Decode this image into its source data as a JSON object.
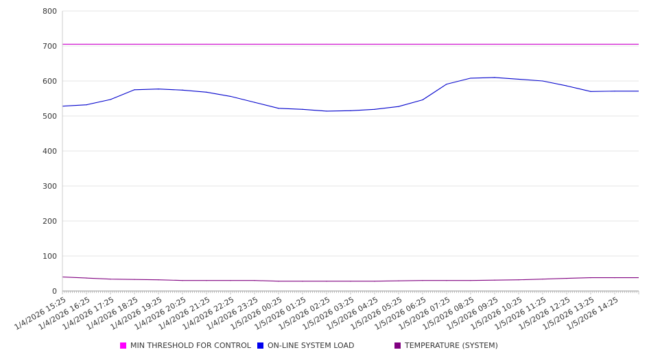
{
  "chart_data": {
    "type": "line",
    "title": "",
    "xlabel": "",
    "ylabel": "",
    "ylim": [
      0,
      800
    ],
    "yticks": [
      0,
      100,
      200,
      300,
      400,
      500,
      600,
      700,
      800
    ],
    "grid": true,
    "legend_position": "bottom",
    "x": [
      "1/4/2026 15:25",
      "1/4/2026 16:25",
      "1/4/2026 17:25",
      "1/4/2026 18:25",
      "1/4/2026 19:25",
      "1/4/2026 20:25",
      "1/4/2026 21:25",
      "1/4/2026 22:25",
      "1/4/2026 23:25",
      "1/5/2026 00:25",
      "1/5/2026 01:25",
      "1/5/2026 02:25",
      "1/5/2026 03:25",
      "1/5/2026 04:25",
      "1/5/2026 05:25",
      "1/5/2026 06:25",
      "1/5/2026 07:25",
      "1/5/2026 08:25",
      "1/5/2026 09:25",
      "1/5/2026 10:25",
      "1/5/2026 11:25",
      "1/5/2026 12:25",
      "1/5/2026 13:25",
      "1/5/2026 14:25"
    ],
    "series": [
      {
        "name": "MIN THRESHOLD FOR CONTROL",
        "color": "#cc00cc",
        "values": [
          705,
          705,
          705,
          705,
          705,
          705,
          705,
          705,
          705,
          705,
          705,
          705,
          705,
          705,
          705,
          705,
          705,
          705,
          705,
          705,
          705,
          705,
          705,
          705
        ]
      },
      {
        "name": "ON-LINE SYSTEM LOAD",
        "color": "#0000cc",
        "values": [
          528,
          532,
          547,
          575,
          577,
          574,
          568,
          556,
          539,
          522,
          519,
          514,
          515,
          519,
          527,
          546,
          591,
          608,
          610,
          605,
          600,
          586,
          570,
          571
        ]
      },
      {
        "name": "TEMPERATURE (SYSTEM)",
        "color": "#800080",
        "values": [
          40,
          37,
          34,
          33,
          32,
          30,
          30,
          30,
          30,
          28,
          28,
          28,
          28,
          28,
          29,
          30,
          30,
          30,
          31,
          32,
          34,
          36,
          38,
          38
        ]
      }
    ]
  }
}
